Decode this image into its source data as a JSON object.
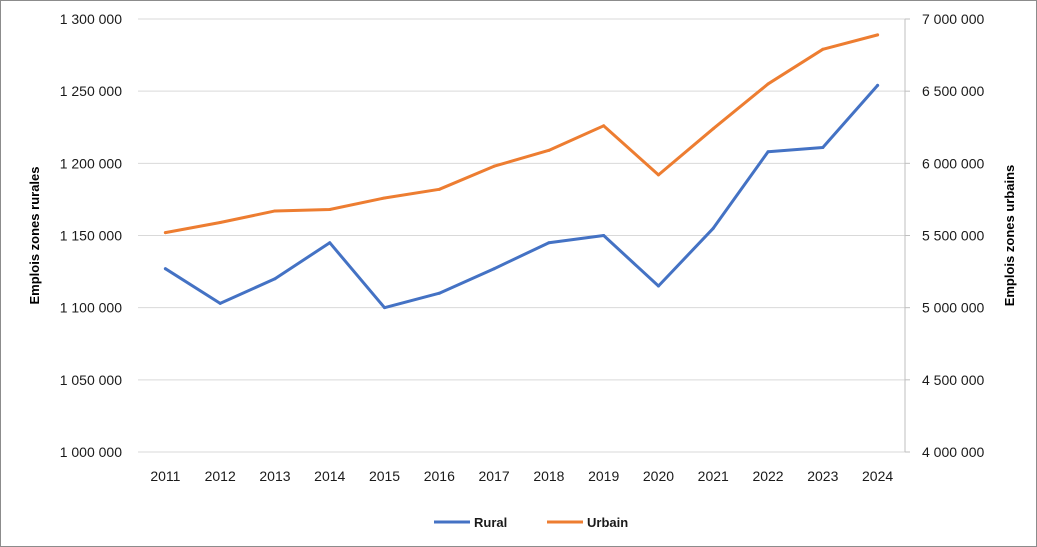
{
  "chart_data": {
    "type": "line",
    "categories": [
      "2011",
      "2012",
      "2013",
      "2014",
      "2015",
      "2016",
      "2017",
      "2018",
      "2019",
      "2020",
      "2021",
      "2022",
      "2023",
      "2024"
    ],
    "series": [
      {
        "name": "Rural",
        "axis": "left",
        "color": "#4472c4",
        "values": [
          1127000,
          1103000,
          1120000,
          1145000,
          1100000,
          1110000,
          1127000,
          1145000,
          1150000,
          1115000,
          1155000,
          1208000,
          1211000,
          1254000
        ]
      },
      {
        "name": "Urbain",
        "axis": "right",
        "color": "#ed7d31",
        "values": [
          5520000,
          5590000,
          5670000,
          5680000,
          5760000,
          5820000,
          5980000,
          6090000,
          6260000,
          5920000,
          6240000,
          6550000,
          6790000,
          6890000
        ]
      }
    ],
    "ylabel": "Emplois zones rurales",
    "y2label": "Emplois zones urbains",
    "ylim": [
      1000000,
      1300000
    ],
    "y2lim": [
      4000000,
      7000000
    ],
    "yticks": [
      "1 000 000",
      "1 050 000",
      "1 100 000",
      "1 150 000",
      "1 200 000",
      "1 250 000",
      "1 300 000"
    ],
    "y2ticks": [
      "4 000 000",
      "4 500 000",
      "5 000 000",
      "5 500 000",
      "6 000 000",
      "6 500 000",
      "7 000 000"
    ],
    "grid": true,
    "legend": "bottom"
  }
}
